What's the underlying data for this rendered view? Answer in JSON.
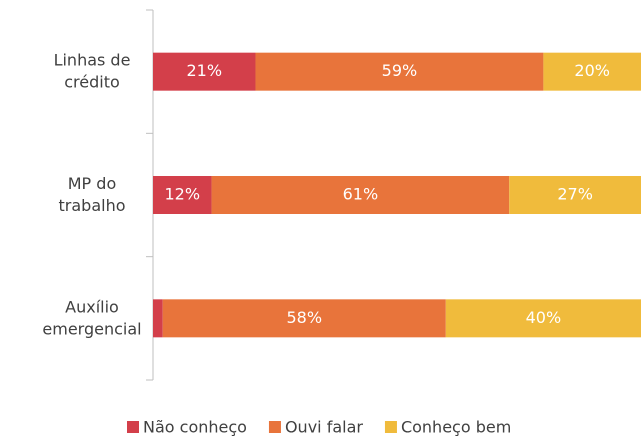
{
  "chart_data": {
    "type": "stacked-barh",
    "categories": [
      "Linhas de crédito",
      "MP do trabalho",
      "Auxílio emergencial"
    ],
    "series": [
      {
        "name": "Não conheço",
        "color": "#d33f4a",
        "values": [
          21,
          12,
          2
        ],
        "value_labels": [
          "21%",
          "12%",
          "2%"
        ]
      },
      {
        "name": "Ouvi falar",
        "color": "#e8743b",
        "values": [
          59,
          61,
          58
        ],
        "value_labels": [
          "59%",
          "61%",
          "58%"
        ]
      },
      {
        "name": "Conheço bem",
        "color": "#f0bb3c",
        "values": [
          20,
          27,
          40
        ],
        "value_labels": [
          "20%",
          "27%",
          "40%"
        ]
      }
    ],
    "legend": "bottom"
  }
}
